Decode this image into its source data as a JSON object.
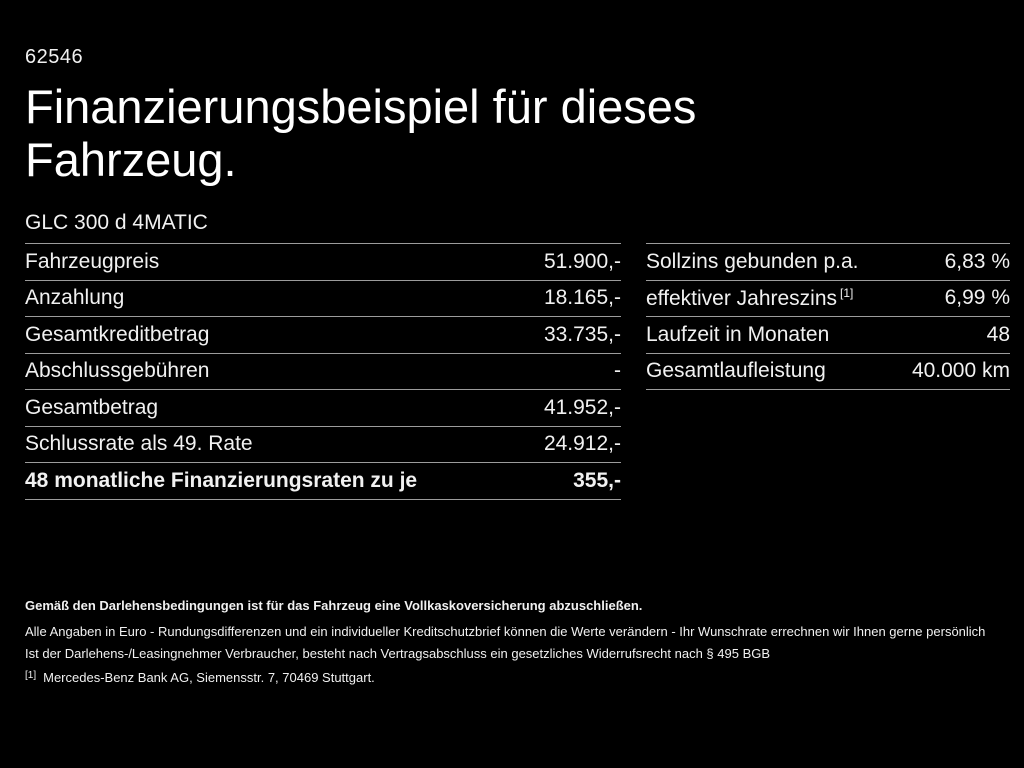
{
  "page": {
    "doc_id": "62546",
    "title": "Finanzierungsbeispiel für dieses Fahrzeug.",
    "model": "GLC 300 d 4MATIC"
  },
  "left_table": {
    "rows": [
      {
        "label": "Fahrzeugpreis",
        "value": "51.900,-"
      },
      {
        "label": "Anzahlung",
        "value": "18.165,-"
      },
      {
        "label": "Gesamtkreditbetrag",
        "value": "33.735,-"
      },
      {
        "label": "Abschlussgebühren",
        "value": "-"
      },
      {
        "label": "Gesamtbetrag",
        "value": "41.952,-"
      },
      {
        "label": "Schlussrate als 49. Rate",
        "value": "24.912,-"
      },
      {
        "label": "48 monatliche Finanzierungsraten zu je",
        "value": "355,-"
      }
    ]
  },
  "right_table": {
    "rows": [
      {
        "label": "Sollzins gebunden p.a.",
        "value": "6,83 %"
      },
      {
        "label": "effektiver Jahreszins",
        "sup": "[1]",
        "value": "6,99 %"
      },
      {
        "label": "Laufzeit in Monaten",
        "value": "48"
      },
      {
        "label": "Gesamtlaufleistung",
        "value": "40.000 km"
      }
    ]
  },
  "footer": {
    "line1": "Gemäß den Darlehensbedingungen ist für das Fahrzeug eine Vollkaskoversicherung abzuschließen.",
    "line2": "Alle Angaben in Euro - Rundungsdifferenzen und ein individueller Kreditschutzbrief können die Werte verändern - Ihr Wunschrate errechnen wir Ihnen gerne persönlich",
    "line3": "Ist der Darlehens-/Leasingnehmer Verbraucher, besteht nach Vertragsabschluss ein gesetzliches Widerrufsrecht nach § 495 BGB",
    "footnote_marker": "[1]",
    "footnote_text": "Mercedes-Benz Bank AG, Siemensstr. 7, 70469 Stuttgart."
  },
  "colors": {
    "background": "#000000",
    "text": "#f1f1f1",
    "divider": "#9c9c9c"
  }
}
